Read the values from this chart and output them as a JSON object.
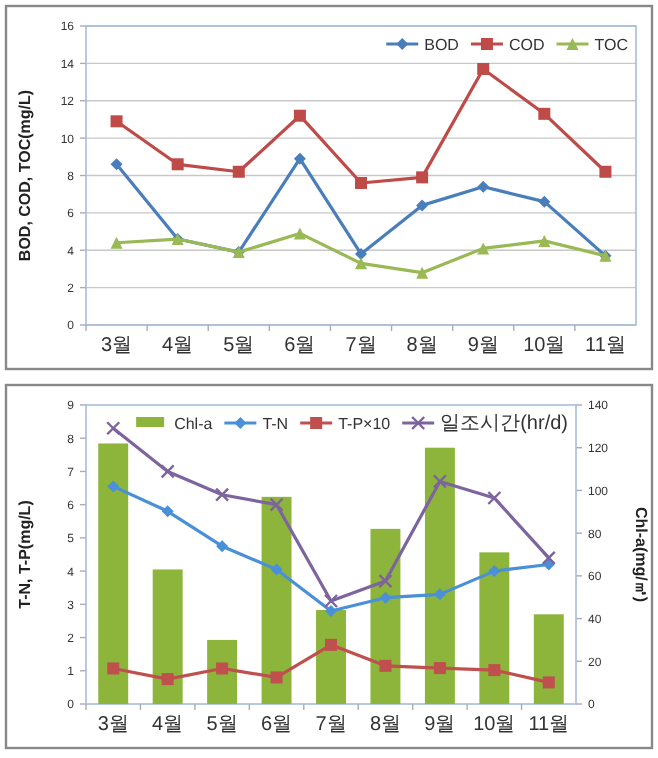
{
  "chart_data": [
    {
      "type": "line",
      "ylabel": "BOD, COD, TOC(mg/L)",
      "categories": [
        "3월",
        "4월",
        "5월",
        "6월",
        "7월",
        "8월",
        "9월",
        "10월",
        "11월"
      ],
      "ylim": [
        0,
        16
      ],
      "yticks": [
        0,
        2,
        4,
        6,
        8,
        10,
        12,
        14,
        16
      ],
      "grid": "y",
      "legend": "top right",
      "series": [
        {
          "name": "BOD",
          "color": "#4a7ebb",
          "marker": "diamond",
          "values": [
            8.6,
            4.6,
            3.9,
            8.9,
            3.8,
            6.4,
            7.4,
            6.6,
            3.7
          ]
        },
        {
          "name": "COD",
          "color": "#be4b48",
          "marker": "square",
          "values": [
            10.9,
            8.6,
            8.2,
            11.2,
            7.6,
            7.9,
            13.7,
            11.3,
            8.2
          ]
        },
        {
          "name": "TOC",
          "color": "#98b954",
          "marker": "triangle",
          "values": [
            4.4,
            4.6,
            3.9,
            4.9,
            3.3,
            2.8,
            4.1,
            4.5,
            3.7
          ]
        }
      ]
    },
    {
      "type": "line",
      "ylabel": "T-N, T-P(mg/L)",
      "y2label": "Chl-a(mg/㎥)",
      "categories": [
        "3월",
        "4월",
        "5월",
        "6월",
        "7월",
        "8월",
        "9월",
        "10월",
        "11월"
      ],
      "ylim": [
        0,
        9
      ],
      "yticks": [
        0,
        1,
        2,
        3,
        4,
        5,
        6,
        7,
        8,
        9
      ],
      "y2lim": [
        0,
        140
      ],
      "y2ticks": [
        0,
        20,
        40,
        60,
        80,
        100,
        120,
        140
      ],
      "legend": "top right",
      "series": [
        {
          "name": "Chl-a",
          "type": "bar",
          "axis": "y2",
          "color": "#8db53b",
          "values": [
            122,
            63,
            30,
            97,
            44,
            82,
            120,
            71,
            42
          ]
        },
        {
          "name": "T-N",
          "color": "#4a90d9",
          "marker": "diamond",
          "values": [
            6.55,
            5.8,
            4.75,
            4.05,
            2.8,
            3.2,
            3.3,
            4.0,
            4.2
          ]
        },
        {
          "name": "T-P×10",
          "color": "#c0504d",
          "marker": "square",
          "values": [
            1.07,
            0.75,
            1.07,
            0.8,
            1.78,
            1.15,
            1.08,
            1.02,
            0.65
          ]
        },
        {
          "name": "일조시간(hr/d)",
          "color": "#7e649e",
          "marker": "cross",
          "values": [
            8.3,
            7.0,
            6.3,
            6.0,
            3.1,
            3.7,
            6.7,
            6.2,
            4.4
          ]
        }
      ]
    }
  ]
}
